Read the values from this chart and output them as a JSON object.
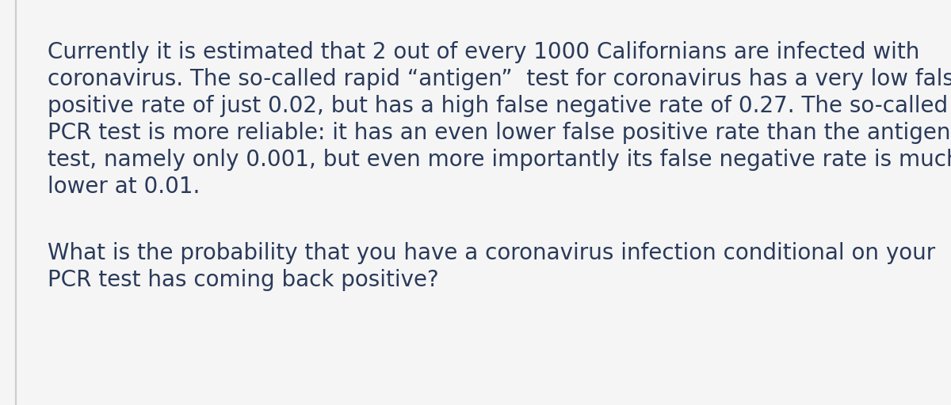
{
  "background_color": "#f5f5f5",
  "card_color": "#ffffff",
  "border_color": "#cccccc",
  "text_color": "#2a3a5a",
  "font_size": 20,
  "paragraph1_lines": [
    "Currently it is estimated that 2 out of every 1000 Californians are infected with",
    "coronavirus. The so-called rapid “antigen”  test for coronavirus has a very low false",
    "positive rate of just 0.02, but has a high false negative rate of 0.27. The so-called",
    "PCR test is more reliable: it has an even lower false positive rate than the antigen",
    "test, namely only 0.001, but even more importantly its false negative rate is much",
    "lower at 0.01."
  ],
  "paragraph2_lines": [
    "What is the probability that you have a coronavirus infection conditional on your",
    "PCR test has coming back positive?"
  ],
  "fig_width": 12.0,
  "fig_height": 5.12,
  "dpi": 100
}
